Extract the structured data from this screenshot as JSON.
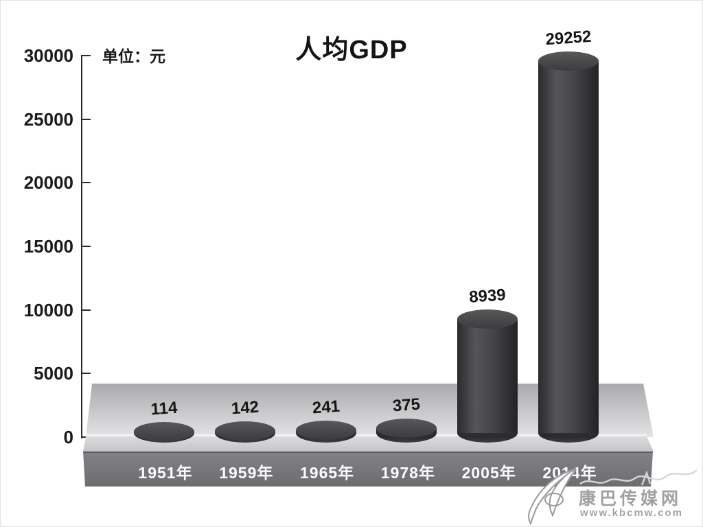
{
  "chart_data": {
    "type": "bar",
    "bar_style": "3d-cylinder",
    "title": "人均GDP",
    "unit_label": "单位：元",
    "categories": [
      "1951年",
      "1959年",
      "1965年",
      "1978年",
      "2005年",
      "2014年"
    ],
    "values": [
      114,
      142,
      241,
      375,
      8939,
      29252
    ],
    "value_labels": [
      "114",
      "142",
      "241",
      "375",
      "8939",
      "29252"
    ],
    "xlabel": "",
    "ylabel": "",
    "ylim": [
      0,
      30000
    ],
    "yticks": [
      0,
      5000,
      10000,
      15000,
      20000,
      25000,
      30000
    ],
    "grid": false,
    "legend": "none",
    "colors": {
      "bar_dark": "#2b2b2d",
      "bar_light": "#555557",
      "platform_front": "#76767a",
      "platform_top": "#c6c6c8",
      "text": "#161616",
      "year_text": "#fdfdfd"
    }
  },
  "watermark": {
    "site_name": "康巴传媒网",
    "site_url": "www.kbcmw.com",
    "logo": "paper-plane-swoosh-icon"
  }
}
